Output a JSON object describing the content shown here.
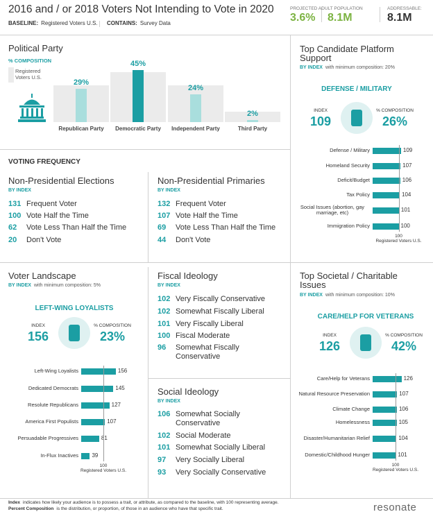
{
  "header": {
    "title": "2016 and / or 2018 Voters Not Intending to Vote in 2020",
    "baseline_label": "BASELINE:",
    "baseline": "Registered Voters U.S.",
    "contains_label": "CONTAINS:",
    "contains": "Survey Data",
    "projected_label": "PROJECTED ADULT POPULATION",
    "projected_pct": "3.6%",
    "projected_count": "8.1M",
    "addressable_label": "ADDRESSABLE:",
    "addressable": "8.1M"
  },
  "political_party": {
    "title": "Political Party",
    "subtitle": "% COMPOSITION",
    "legend": "Registered Voters U.S.",
    "categories": [
      "Republican Party",
      "Democratic Party",
      "Independent Party",
      "Third Party"
    ],
    "values": [
      29,
      45,
      24,
      2
    ],
    "value_labels": [
      "29%",
      "45%",
      "24%",
      "2%"
    ],
    "baseline_values": [
      32,
      43,
      32,
      9
    ],
    "color": "#1b9ea3",
    "baseline_color": "#ebebeb"
  },
  "voting_frequency": {
    "title": "VOTING FREQUENCY",
    "groups": [
      {
        "title": "Non-Presidential Elections",
        "subtitle": "BY INDEX",
        "items": [
          {
            "index": 131,
            "label": "Frequent Voter"
          },
          {
            "index": 100,
            "label": "Vote Half the Time"
          },
          {
            "index": 62,
            "label": "Vote Less Than Half the Time"
          },
          {
            "index": 20,
            "label": "Don't Vote"
          }
        ]
      },
      {
        "title": "Non-Presidential Primaries",
        "subtitle": "BY INDEX",
        "items": [
          {
            "index": 132,
            "label": "Frequent Voter"
          },
          {
            "index": 107,
            "label": "Vote Half the Time"
          },
          {
            "index": 69,
            "label": "Vote Less Than Half the Time"
          },
          {
            "index": 44,
            "label": "Don't Vote"
          }
        ]
      }
    ]
  },
  "candidate_platform": {
    "title": "Top Candidate Platform Support",
    "subtitle_bold": "BY INDEX",
    "subtitle": "with minimum composition: 20%",
    "highlight": "DEFENSE / MILITARY",
    "index_label": "INDEX",
    "index": 109,
    "composition_label": "% COMPOSITION",
    "composition": "26%",
    "categories": [
      "Defense / Military",
      "Homeland Security",
      "Deficit/Budget",
      "Tax Policy",
      "Social Issues (abortion, gay marriage, etc)",
      "Immigration Policy"
    ],
    "values": [
      109,
      107,
      106,
      104,
      101,
      100
    ],
    "color": "#1b9ea3",
    "reference": 100,
    "reference_label": "Registered Voters U.S."
  },
  "voter_landscape": {
    "title": "Voter Landscape",
    "subtitle_bold": "BY INDEX",
    "subtitle": "with minimum composition: 5%",
    "highlight": "LEFT-WING LOYALISTS",
    "index_label": "INDEX",
    "index": 156,
    "composition_label": "% COMPOSITION",
    "composition": "23%",
    "categories": [
      "Left-Wing Loyalists",
      "Dedicated Democrats",
      "Resolute Republicans",
      "America First Populists",
      "Persuadable Progressives",
      "In-Flux Inactives"
    ],
    "values": [
      156,
      145,
      127,
      107,
      81,
      39
    ],
    "color": "#1b9ea3",
    "reference": 100,
    "reference_label": "Registered Voters U.S."
  },
  "fiscal_ideology": {
    "title": "Fiscal Ideology",
    "subtitle": "BY INDEX",
    "items": [
      {
        "index": 102,
        "label": "Very Fiscally Conservative"
      },
      {
        "index": 102,
        "label": "Somewhat Fiscally Liberal"
      },
      {
        "index": 101,
        "label": "Very Fiscally Liberal"
      },
      {
        "index": 100,
        "label": "Fiscal Moderate"
      },
      {
        "index": 96,
        "label": "Somewhat Fiscally Conservative"
      }
    ]
  },
  "social_ideology": {
    "title": "Social Ideology",
    "subtitle": "BY INDEX",
    "items": [
      {
        "index": 106,
        "label": "Somewhat Socially Conservative"
      },
      {
        "index": 102,
        "label": "Social Moderate"
      },
      {
        "index": 101,
        "label": "Somewhat Socially Liberal"
      },
      {
        "index": 97,
        "label": "Very Socially Liberal"
      },
      {
        "index": 93,
        "label": "Very Socially Conservative"
      }
    ]
  },
  "societal_issues": {
    "title": "Top Societal / Charitable Issues",
    "subtitle_bold": "BY INDEX",
    "subtitle": "with minimum composition: 10%",
    "highlight": "CARE/HELP FOR VETERANS",
    "index_label": "INDEX",
    "index": 126,
    "composition_label": "% COMPOSITION",
    "composition": "42%",
    "categories": [
      "Care/Help for Veterans",
      "Natural Resource Preservation",
      "Climate Change",
      "Homelessness",
      "Disaster/Humanitarian Relief",
      "Domestic/Childhood Hunger"
    ],
    "values": [
      126,
      107,
      106,
      105,
      104,
      101
    ],
    "color": "#1b9ea3",
    "reference": 100,
    "reference_label": "Registered Voters U.S."
  },
  "footer": {
    "index_term": "Index",
    "index_text": "indicates how likely your audience is to possess a trait, or attribute, as compared to the baseline, with 100 representing average.",
    "composition_term": "Percent Composition",
    "composition_text": "is the distribution, or proportion, of those in an audience who have that specific trait.",
    "logo": "resonate"
  }
}
